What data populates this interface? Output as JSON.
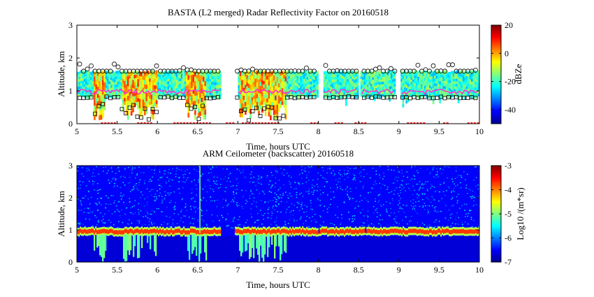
{
  "chart_data": [
    {
      "type": "heatmap",
      "title": "BASTA (L2 merged) Radar Reflectivity Factor on 20160518",
      "xlabel": "Time, hours UTC",
      "ylabel": "Altitude, km",
      "xlim": [
        5,
        10
      ],
      "ylim": [
        0,
        3
      ],
      "x_ticks": [
        5,
        5.5,
        6,
        6.5,
        7,
        7.5,
        8,
        8.5,
        9,
        9.5,
        10
      ],
      "y_ticks": [
        0,
        1,
        2,
        3
      ],
      "colorbar": {
        "label": "dBZe",
        "range": [
          -50,
          20
        ],
        "ticks": [
          20,
          0,
          -20,
          -40
        ]
      },
      "cloud_layer_km": {
        "base_min": 0.1,
        "base_typical": 0.8,
        "top_typical": 1.6
      },
      "overlays": [
        {
          "marker": "circle",
          "meaning": "cloud top markers",
          "altitude_km": [
            1.6,
            1.85
          ]
        },
        {
          "marker": "square",
          "meaning": "cloud base markers",
          "altitude_km": [
            0.1,
            0.8
          ]
        },
        {
          "marker": "magenta-line",
          "altitude_km": [
            0.9,
            1.05
          ]
        },
        {
          "marker": "red-dots",
          "altitude_km": [
            0.0
          ]
        }
      ]
    },
    {
      "type": "heatmap",
      "title": "ARM Ceilometer (backscatter) 20160518",
      "xlabel": "Time, hours UTC",
      "ylabel": "Altitude, km",
      "xlim": [
        5,
        10
      ],
      "ylim": [
        0,
        3
      ],
      "x_ticks": [
        5,
        5.5,
        6,
        6.5,
        7,
        7.5,
        8,
        8.5,
        9,
        9.5,
        10
      ],
      "y_ticks": [
        0,
        1,
        2,
        3
      ],
      "colorbar": {
        "label": "Log10 /(m*sr)",
        "range": [
          -7,
          -3
        ],
        "ticks": [
          -3,
          -4,
          -5,
          -6,
          -7
        ]
      },
      "layer_altitude_km": 0.95
    }
  ],
  "colors": {
    "jet": [
      "#00008f",
      "#0000ff",
      "#0080ff",
      "#00ffff",
      "#80ff80",
      "#ffff00",
      "#ff8000",
      "#ff0000",
      "#800000"
    ],
    "axis": "#000000",
    "magenta": "#ff33cc",
    "red_marker": "#ff2020"
  }
}
